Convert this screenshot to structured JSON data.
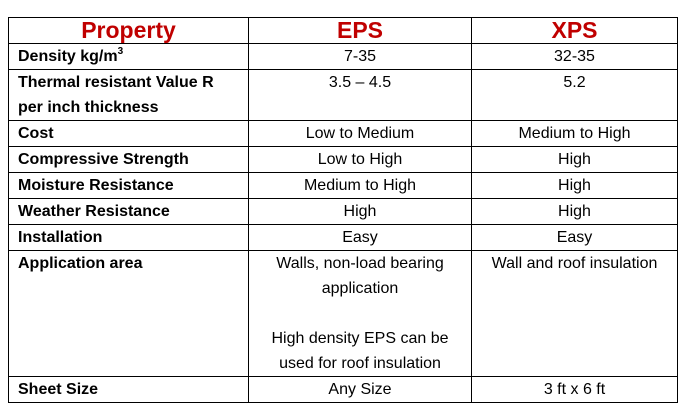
{
  "table": {
    "headers": [
      "Property",
      "EPS",
      "XPS"
    ],
    "rows": [
      {
        "property": "Density kg/m",
        "property_sup": "3",
        "eps": "7-35",
        "xps": "32-35"
      },
      {
        "property": "Thermal resistant Value R per inch thickness",
        "eps": "3.5 – 4.5",
        "xps": "5.2"
      },
      {
        "property": "Cost",
        "eps": "Low to Medium",
        "xps": "Medium to High"
      },
      {
        "property": "Compressive Strength",
        "eps": "Low to High",
        "xps": "High"
      },
      {
        "property": "Moisture Resistance",
        "eps": "Medium to High",
        "xps": "High"
      },
      {
        "property": "Weather Resistance",
        "eps": "High",
        "xps": "High"
      },
      {
        "property": "Installation",
        "eps": "Easy",
        "xps": "Easy"
      },
      {
        "property": "Application area",
        "eps_p1": "Walls, non-load bearing application",
        "eps_p2": "High density EPS can be used for roof insulation",
        "xps": "Wall and roof insulation"
      },
      {
        "property": "Sheet Size",
        "eps": "Any Size",
        "xps": "3 ft x 6 ft"
      }
    ]
  }
}
